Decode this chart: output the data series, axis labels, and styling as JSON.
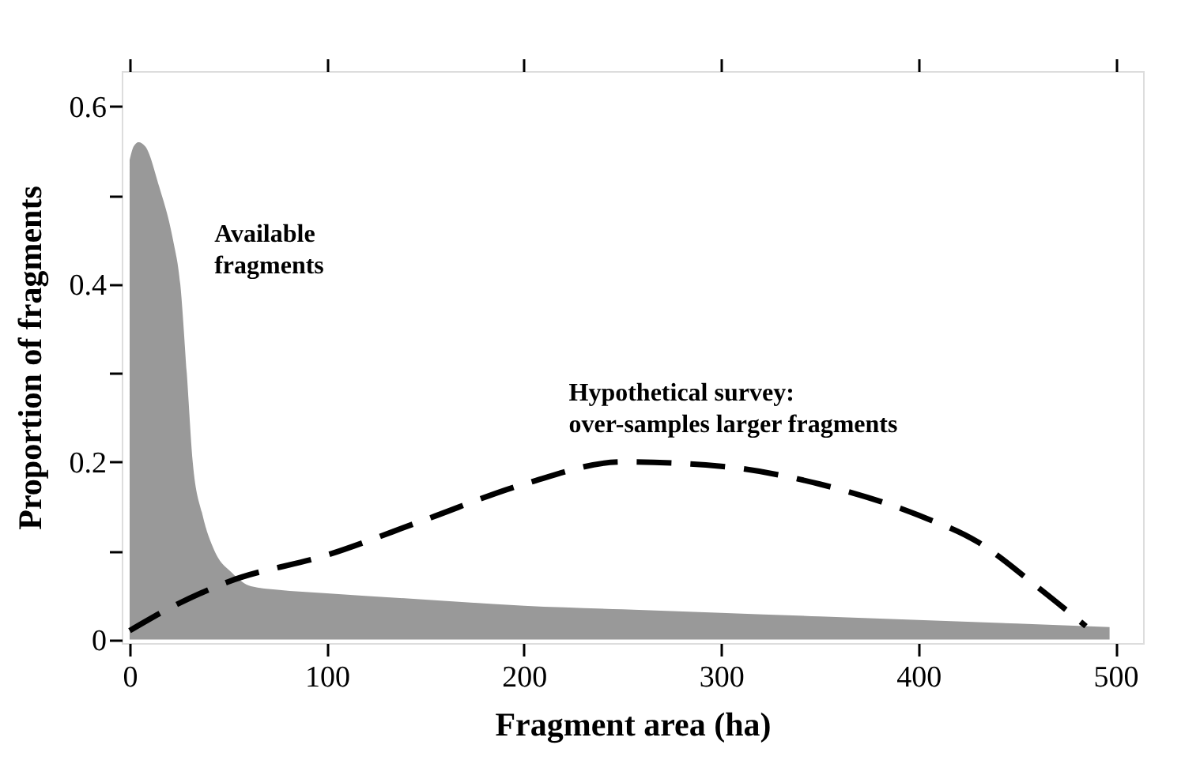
{
  "chart_data": {
    "type": "area",
    "xlabel": "Fragment area (ha)",
    "ylabel": "Proportion of fragments",
    "xlim": [
      -4,
      514
    ],
    "ylim": [
      -0.004,
      0.64
    ],
    "xticks": [
      0,
      100,
      200,
      300,
      400,
      500
    ],
    "yticks": [
      0,
      {
        "value": 0.1,
        "label": null
      },
      0.2,
      {
        "value": 0.3,
        "label": null
      },
      0.4,
      {
        "value": 0.5,
        "label": null
      },
      0.6
    ],
    "grid": false,
    "series": [
      {
        "name": "Available\nfragments",
        "color": "#999999",
        "x": [
          0,
          2,
          4.5,
          8,
          15,
          22,
          25.7,
          29,
          32,
          37,
          43,
          52,
          61.5,
          75,
          100,
          150,
          200,
          250,
          300,
          350,
          400,
          450,
          497
        ],
        "values": [
          0.54,
          0.555,
          0.56,
          0.555,
          0.51,
          0.45,
          0.4,
          0.3,
          0.2,
          0.14,
          0.1,
          0.075,
          0.06,
          0.056,
          0.052,
          0.045,
          0.038,
          0.034,
          0.03,
          0.026,
          0.022,
          0.018,
          0.014
        ]
      },
      {
        "name": "Hypothetical survey:\nover-samples larger fragments",
        "type": "line",
        "line_style": "dashed",
        "color": "#000000",
        "x": [
          0,
          20,
          50,
          100,
          150,
          200,
          250,
          300,
          350,
          400,
          430,
          460,
          485
        ],
        "values": [
          0.01,
          0.035,
          0.065,
          0.095,
          0.135,
          0.175,
          0.2,
          0.195,
          0.175,
          0.14,
          0.11,
          0.06,
          0.015
        ]
      }
    ]
  }
}
